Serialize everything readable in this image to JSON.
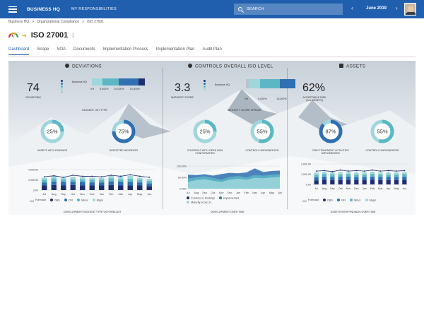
{
  "topbar": {
    "brand": "BUSINESS HQ",
    "my_responsibilities": "MY RESPONSIBILITIES",
    "search_placeholder": "SEARCH",
    "month": "June 2019",
    "prev": "‹",
    "next": "›"
  },
  "breadcrumb": [
    "Business HQ",
    ">",
    "Organizational Compliance",
    ">",
    "ISO 27001"
  ],
  "page": {
    "title": "ISO 27001",
    "sep": "|"
  },
  "tabs": [
    "Dashboard",
    "Scope",
    "SOA",
    "Documents",
    "Implementation Process",
    "Implementation Plan",
    "Audit Plan"
  ],
  "colors": {
    "navy": "#1f2e6e",
    "blue": "#2f6fb2",
    "teal": "#5bb7c4",
    "light": "#9fd6dc",
    "gray": "#b9c3cc",
    "accent": "#1f5fae"
  },
  "deviations": {
    "title": "DEVIATIONS",
    "count": "74",
    "count_label": "DEVIATIONS",
    "bar_label": "Business HQ",
    "bar_ticks": [
      "0%",
      "5,000%",
      "10,000%",
      "15,000%"
    ],
    "bar_caption": "INCIDENT LIST TYPE",
    "ring1": {
      "value": 25,
      "text": "25%",
      "label": "ASSETS WITH FINDINGS"
    },
    "ring2": {
      "value": 75,
      "text": "75%",
      "label": "REPORTED INCIDENTS"
    },
    "chart_caption": "DEVELOPMENT INCIDENT TYPE VS FORECAST",
    "legend": [
      "Forecast",
      "OBS",
      "OFI",
      "Minor",
      "Major"
    ]
  },
  "iso_level": {
    "title": "CONTROLS OVERALL ISO LEVEL",
    "value": "3.3",
    "value_label": "MATURITY SCORE",
    "bar_label": "Business HQ",
    "bar_ticks": [
      "0%",
      "5,000%",
      "10,000%"
    ],
    "bar_caption": "MATURITY SCORE SPREAD",
    "ring1": {
      "value": 25,
      "text": "25%",
      "label": "CONTROLS WITH OPEN NON CONFORMITIES"
    },
    "ring2": {
      "value": 55,
      "text": "55%",
      "label": "CONTROLS IMPLEMENTED"
    },
    "chart_caption": "DEVELOPMENT OVER TIME",
    "legend": [
      "Controls w. Findings",
      "Implemented",
      "Maturity score 3+"
    ]
  },
  "assets": {
    "title": "ASSETS",
    "value": "62%",
    "value_label": "ACCEPTABLE RISK (ALL ASSETS)",
    "ring1": {
      "value": 87,
      "text": "87%",
      "label": "RISK TREATMENT ACTIVITIES IMPLEMENTED"
    },
    "ring2": {
      "value": 55,
      "text": "55%",
      "label": "CONTROLS IMPLEMENTED"
    },
    "chart_caption": "ASSETS WITH FINDINGS OVER TIME",
    "legend": [
      "Forecast",
      "OBS",
      "OFI",
      "Minor",
      "Major"
    ]
  },
  "chart_data": [
    {
      "type": "bar",
      "categories": [
        "Jul",
        "Aug",
        "Sep",
        "Oct",
        "Nov",
        "Dec",
        "Jan",
        "Feb",
        "Mar",
        "Apr",
        "May",
        "Jun"
      ],
      "yticks": [
        "4,000.00",
        "2,000.00",
        "0.00"
      ],
      "ylim": [
        0,
        4000
      ],
      "series": [
        {
          "name": "OBS",
          "values": [
            900,
            1000,
            900,
            1000,
            900,
            900,
            900,
            1000,
            900,
            900,
            900,
            800
          ]
        },
        {
          "name": "OFI",
          "values": [
            600,
            700,
            700,
            600,
            700,
            600,
            600,
            700,
            700,
            700,
            600,
            500
          ]
        },
        {
          "name": "Minor",
          "values": [
            500,
            600,
            500,
            500,
            500,
            500,
            500,
            600,
            500,
            600,
            500,
            500
          ]
        },
        {
          "name": "Major",
          "values": [
            400,
            500,
            500,
            500,
            400,
            400,
            400,
            500,
            500,
            600,
            400,
            400
          ]
        }
      ],
      "forecast": [
        2600,
        2800,
        2500,
        2900,
        2700,
        2700,
        2600,
        2900,
        2700,
        3000,
        2700,
        2500
      ]
    },
    {
      "type": "area",
      "categories": [
        "Jul",
        "Aug",
        "Sep",
        "Oct",
        "Nov",
        "Dec",
        "Jan",
        "Feb",
        "Mar",
        "Apr",
        "May",
        "Jun"
      ],
      "yticks": [
        "100.00%",
        "50.00%",
        "0.00%"
      ],
      "ylim": [
        0,
        100
      ],
      "series": [
        {
          "name": "Controls w. Findings",
          "values": [
            62,
            60,
            64,
            58,
            65,
            70,
            68,
            72,
            90,
            74,
            78,
            80
          ]
        },
        {
          "name": "Implemented",
          "values": [
            45,
            50,
            55,
            48,
            40,
            52,
            56,
            50,
            60,
            58,
            62,
            64
          ]
        },
        {
          "name": "Maturity score 3+",
          "values": [
            30,
            38,
            42,
            35,
            30,
            40,
            44,
            40,
            48,
            46,
            50,
            52
          ]
        }
      ]
    },
    {
      "type": "bar",
      "categories": [
        "Jul",
        "Aug",
        "Sep",
        "Oct",
        "Nov",
        "Dec",
        "Jan",
        "Feb",
        "Mar",
        "Apr",
        "May",
        "Jun"
      ],
      "yticks": [
        "2,000.00",
        "1,000.00",
        "0.00"
      ],
      "ylim": [
        0,
        2000
      ],
      "series": [
        {
          "name": "OBS",
          "values": [
            400,
            450,
            420,
            430,
            440,
            420,
            410,
            450,
            430,
            420,
            430,
            440
          ]
        },
        {
          "name": "OFI",
          "values": [
            300,
            320,
            310,
            300,
            320,
            300,
            310,
            320,
            300,
            310,
            300,
            310
          ]
        },
        {
          "name": "Minor",
          "values": [
            250,
            260,
            240,
            250,
            250,
            240,
            250,
            260,
            250,
            250,
            240,
            250
          ]
        },
        {
          "name": "Major",
          "values": [
            200,
            220,
            230,
            210,
            200,
            210,
            220,
            210,
            200,
            220,
            210,
            200
          ]
        }
      ],
      "forecast": [
        1300,
        1350,
        1250,
        1400,
        1300,
        1350,
        1300,
        1400,
        1300,
        1350,
        1300,
        1350
      ]
    }
  ]
}
